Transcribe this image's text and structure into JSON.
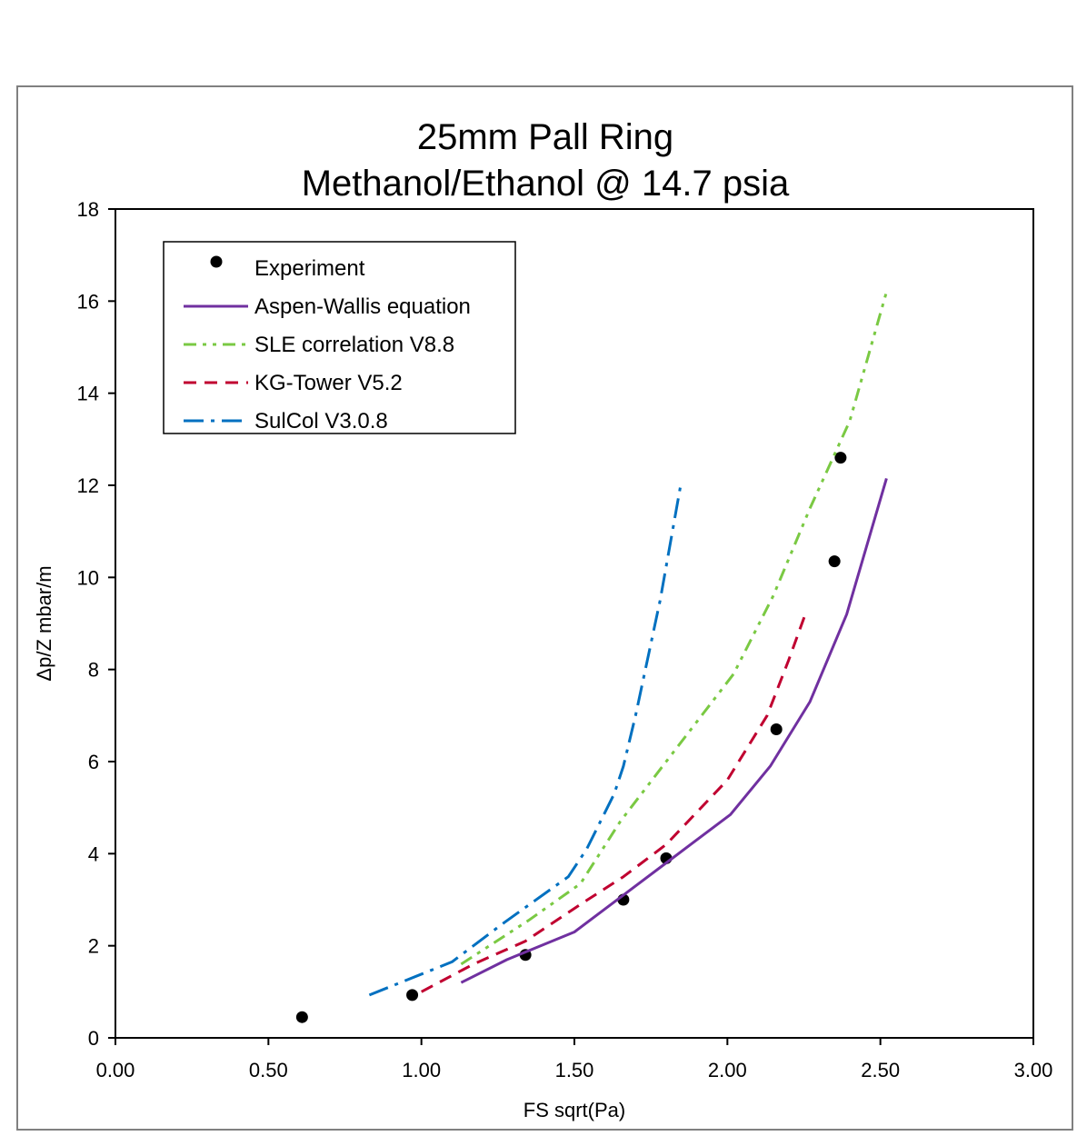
{
  "chart_data": {
    "type": "line",
    "title": [
      "25mm Pall Ring",
      "Methanol/Ethanol @ 14.7 psia"
    ],
    "xlabel": "FS sqrt(Pa)",
    "ylabel": "Δp/Z  mbar/m",
    "xlim": [
      0,
      3
    ],
    "ylim": [
      0,
      18
    ],
    "x_ticks": [
      "0.00",
      "0.50",
      "1.00",
      "1.50",
      "2.00",
      "2.50",
      "3.00"
    ],
    "y_ticks": [
      "0",
      "2",
      "4",
      "6",
      "8",
      "10",
      "12",
      "14",
      "16",
      "18"
    ],
    "grid": false,
    "legend_position": "top-left",
    "series": [
      {
        "name": "Experiment",
        "kind": "scatter",
        "color": "#000000",
        "points": [
          [
            0.61,
            0.45
          ],
          [
            0.97,
            0.93
          ],
          [
            1.34,
            1.8
          ],
          [
            1.66,
            3.0
          ],
          [
            1.8,
            3.9
          ],
          [
            2.16,
            6.7
          ],
          [
            2.35,
            10.35
          ],
          [
            2.37,
            12.6
          ]
        ]
      },
      {
        "name": "Aspen-Wallis equation",
        "kind": "line",
        "style": "solid",
        "color": "#7030a0",
        "points": [
          [
            1.13,
            1.2
          ],
          [
            1.28,
            1.7
          ],
          [
            1.5,
            2.3
          ],
          [
            1.66,
            3.1
          ],
          [
            1.8,
            3.8
          ],
          [
            2.01,
            4.85
          ],
          [
            2.14,
            5.9
          ],
          [
            2.27,
            7.3
          ],
          [
            2.39,
            9.2
          ],
          [
            2.52,
            12.15
          ]
        ]
      },
      {
        "name": "SLE correlation V8.8",
        "kind": "line",
        "style": "dashdotdot",
        "color": "#7ac943",
        "points": [
          [
            1.13,
            1.6
          ],
          [
            1.35,
            2.55
          ],
          [
            1.52,
            3.35
          ],
          [
            1.65,
            4.7
          ],
          [
            1.8,
            6.0
          ],
          [
            2.02,
            7.9
          ],
          [
            2.15,
            9.6
          ],
          [
            2.27,
            11.5
          ],
          [
            2.4,
            13.4
          ],
          [
            2.52,
            16.2
          ]
        ]
      },
      {
        "name": "KG-Tower V5.2",
        "kind": "line",
        "style": "dashed",
        "color": "#c00030",
        "points": [
          [
            1.0,
            1.0
          ],
          [
            1.17,
            1.6
          ],
          [
            1.34,
            2.1
          ],
          [
            1.52,
            2.9
          ],
          [
            1.66,
            3.5
          ],
          [
            1.8,
            4.2
          ],
          [
            2.0,
            5.6
          ],
          [
            2.13,
            7.0
          ],
          [
            2.2,
            8.2
          ],
          [
            2.26,
            9.3
          ]
        ]
      },
      {
        "name": "SulCol V3.0.8",
        "kind": "line",
        "style": "dashdot",
        "color": "#0070c0",
        "points": [
          [
            0.83,
            0.93
          ],
          [
            1.1,
            1.65
          ],
          [
            1.27,
            2.5
          ],
          [
            1.48,
            3.5
          ],
          [
            1.54,
            4.1
          ],
          [
            1.63,
            5.3
          ],
          [
            1.66,
            5.9
          ],
          [
            1.7,
            7.0
          ],
          [
            1.78,
            9.5
          ],
          [
            1.85,
            12.1
          ]
        ]
      }
    ]
  }
}
